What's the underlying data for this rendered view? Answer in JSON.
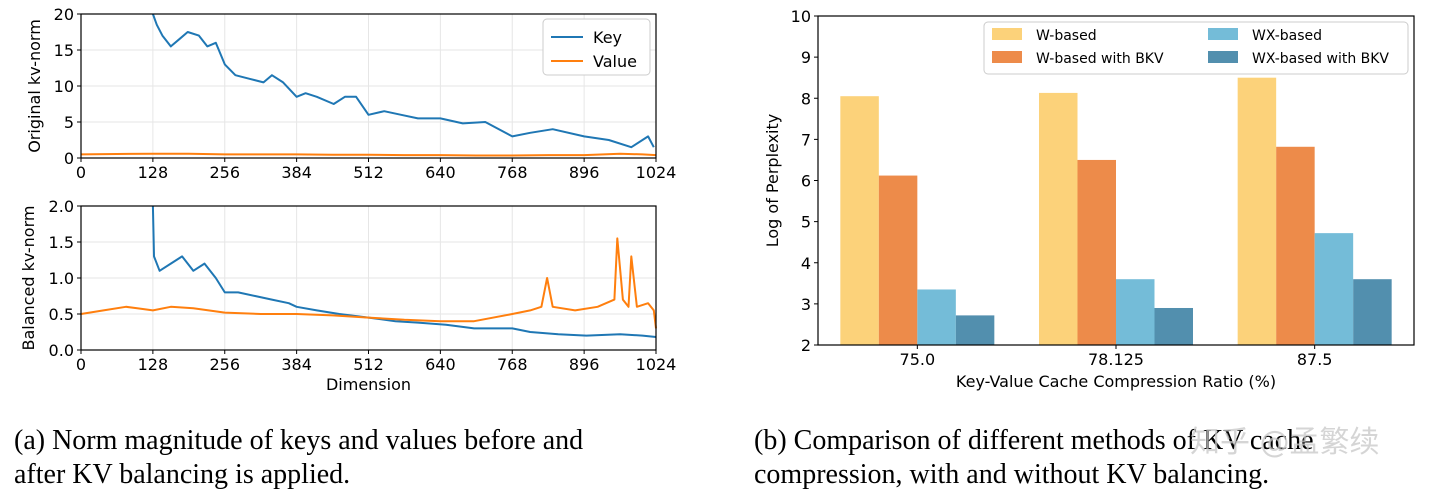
{
  "colors": {
    "key": "#1f77b4",
    "value": "#ff7f0e",
    "w_based": "#fcd27a",
    "w_based_bkv": "#ed8b4a",
    "wx_based": "#74bcd8",
    "wx_based_bkv": "#528fae"
  },
  "chart_data": [
    {
      "id": "norm-original",
      "type": "line",
      "title": "",
      "xlabel": "",
      "ylabel": "Original kv-norm",
      "xlim": [
        0,
        1024
      ],
      "ylim": [
        0,
        20
      ],
      "xticks": [
        "0",
        "128",
        "256",
        "384",
        "512",
        "640",
        "768",
        "896",
        "1024"
      ],
      "yticks": [
        "0",
        "5",
        "10",
        "15",
        "20"
      ],
      "legend": [
        "Key",
        "Value"
      ],
      "series": [
        {
          "name": "Key",
          "color": "#1f77b4",
          "x": [
            128,
            135,
            145,
            160,
            175,
            190,
            210,
            225,
            240,
            256,
            275,
            300,
            325,
            340,
            360,
            384,
            400,
            420,
            450,
            470,
            490,
            512,
            540,
            570,
            600,
            640,
            680,
            720,
            768,
            800,
            840,
            896,
            940,
            980,
            1010,
            1020
          ],
          "y": [
            20,
            18.5,
            17,
            15.5,
            16.5,
            17.5,
            17,
            15.5,
            16,
            13,
            11.5,
            11,
            10.5,
            11.5,
            10.5,
            8.5,
            9,
            8.5,
            7.5,
            8.5,
            8.5,
            6,
            6.5,
            6,
            5.5,
            5.5,
            4.8,
            5,
            3,
            3.5,
            4,
            3,
            2.5,
            1.5,
            3,
            1.5
          ]
        },
        {
          "name": "Value",
          "color": "#ff7f0e",
          "x": [
            0,
            64,
            128,
            192,
            256,
            320,
            384,
            448,
            512,
            576,
            640,
            704,
            768,
            832,
            896,
            960,
            1000,
            1024
          ],
          "y": [
            0.5,
            0.55,
            0.6,
            0.6,
            0.5,
            0.5,
            0.5,
            0.45,
            0.45,
            0.4,
            0.4,
            0.35,
            0.35,
            0.4,
            0.4,
            0.6,
            0.5,
            0.4
          ]
        }
      ]
    },
    {
      "id": "norm-balanced",
      "type": "line",
      "title": "",
      "xlabel": "Dimension",
      "ylabel": "Balanced kv-norm",
      "xlim": [
        0,
        1024
      ],
      "ylim": [
        0,
        2.0
      ],
      "xticks": [
        "0",
        "128",
        "256",
        "384",
        "512",
        "640",
        "768",
        "896",
        "1024"
      ],
      "yticks": [
        "0.0",
        "0.5",
        "1.0",
        "1.5",
        "2.0"
      ],
      "series": [
        {
          "name": "Key",
          "color": "#1f77b4",
          "x": [
            128,
            130,
            140,
            160,
            180,
            200,
            220,
            240,
            256,
            280,
            310,
            340,
            370,
            384,
            420,
            460,
            512,
            560,
            600,
            650,
            700,
            768,
            800,
            850,
            900,
            960,
            1000,
            1024
          ],
          "y": [
            2.0,
            1.3,
            1.1,
            1.2,
            1.3,
            1.1,
            1.2,
            1.0,
            0.8,
            0.8,
            0.75,
            0.7,
            0.65,
            0.6,
            0.55,
            0.5,
            0.45,
            0.4,
            0.38,
            0.35,
            0.3,
            0.3,
            0.25,
            0.22,
            0.2,
            0.22,
            0.2,
            0.18
          ]
        },
        {
          "name": "Value",
          "color": "#ff7f0e",
          "x": [
            0,
            40,
            80,
            100,
            128,
            160,
            200,
            256,
            320,
            384,
            448,
            512,
            576,
            640,
            700,
            768,
            800,
            820,
            830,
            840,
            880,
            920,
            950,
            955,
            965,
            975,
            980,
            990,
            1010,
            1020,
            1024
          ],
          "y": [
            0.5,
            0.55,
            0.6,
            0.58,
            0.55,
            0.6,
            0.58,
            0.52,
            0.5,
            0.5,
            0.48,
            0.45,
            0.42,
            0.4,
            0.4,
            0.5,
            0.55,
            0.6,
            1.0,
            0.6,
            0.55,
            0.6,
            0.7,
            1.55,
            0.7,
            0.6,
            1.3,
            0.6,
            0.65,
            0.55,
            0.3
          ]
        }
      ]
    },
    {
      "id": "perplexity-bars",
      "type": "bar",
      "title": "",
      "xlabel": "Key-Value Cache Compression Ratio (%)",
      "ylabel": "Log of Perplexity",
      "ylim": [
        2,
        10
      ],
      "categories": [
        "75.0",
        "78.125",
        "87.5"
      ],
      "yticks": [
        "2",
        "3",
        "4",
        "5",
        "6",
        "7",
        "8",
        "9",
        "10"
      ],
      "legend_placement": "top-right",
      "series": [
        {
          "name": "W-based",
          "color": "#fcd27a",
          "values": [
            8.05,
            8.13,
            8.5
          ]
        },
        {
          "name": "W-based with BKV",
          "color": "#ed8b4a",
          "values": [
            6.12,
            6.5,
            6.82
          ]
        },
        {
          "name": "WX-based",
          "color": "#74bcd8",
          "values": [
            3.35,
            3.6,
            4.72
          ]
        },
        {
          "name": "WX-based with BKV",
          "color": "#528fae",
          "values": [
            2.72,
            2.9,
            3.6
          ]
        }
      ]
    }
  ],
  "captions": {
    "a_line1": "(a) Norm magnitude of keys and values before and",
    "a_line2": "after KV balancing is applied.",
    "b_line1": "(b) Comparison of different methods of KV cache",
    "b_line2": "compression, with and without KV balancing."
  },
  "watermark": "知乎 @孟繁续"
}
